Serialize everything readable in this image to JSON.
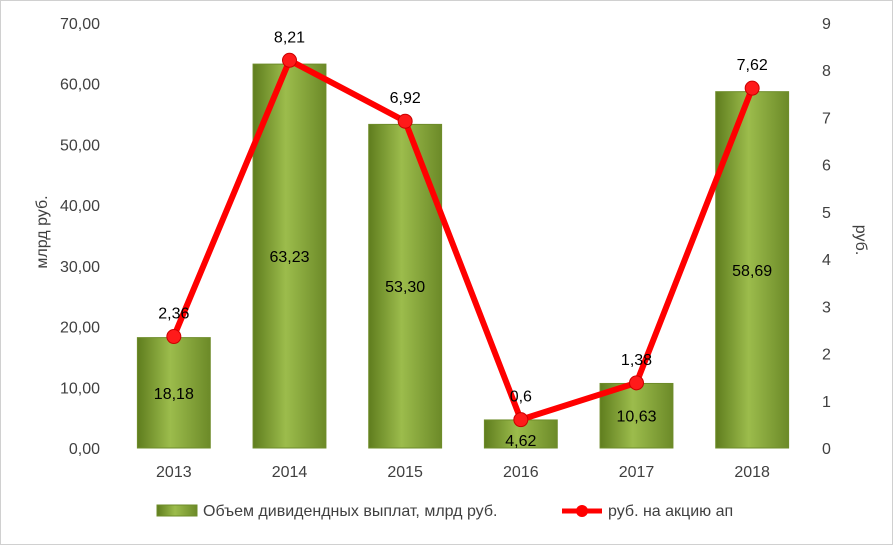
{
  "chart_data": {
    "type": "bar",
    "categories": [
      "2013",
      "2014",
      "2015",
      "2016",
      "2017",
      "2018"
    ],
    "series": [
      {
        "name": "Объем дивидендных выплат, млрд руб.",
        "type": "bar",
        "axis": "left",
        "values": [
          18.18,
          63.23,
          53.3,
          4.62,
          10.63,
          58.69
        ],
        "labels": [
          "18,18",
          "63,23",
          "53,30",
          "4,62",
          "10,63",
          "58,69"
        ],
        "color": "#8AAB3C"
      },
      {
        "name": "руб. на акцию ап",
        "type": "line",
        "axis": "right",
        "values": [
          2.36,
          8.21,
          6.92,
          0.6,
          1.38,
          7.62
        ],
        "labels": [
          "2,36",
          "8,21",
          "6,92",
          "0,6",
          "1,38",
          "7,62"
        ],
        "color": "#FF0000"
      }
    ],
    "ylabel": "млрд руб.",
    "y2label": "руб.",
    "ylim": [
      0,
      70
    ],
    "y2lim": [
      0,
      9
    ],
    "yticks": [
      "0,00",
      "10,00",
      "20,00",
      "30,00",
      "40,00",
      "50,00",
      "60,00",
      "70,00"
    ],
    "y2ticks": [
      "0",
      "1",
      "2",
      "3",
      "4",
      "5",
      "6",
      "7",
      "8",
      "9"
    ],
    "grid": false,
    "legend": "bottom"
  }
}
